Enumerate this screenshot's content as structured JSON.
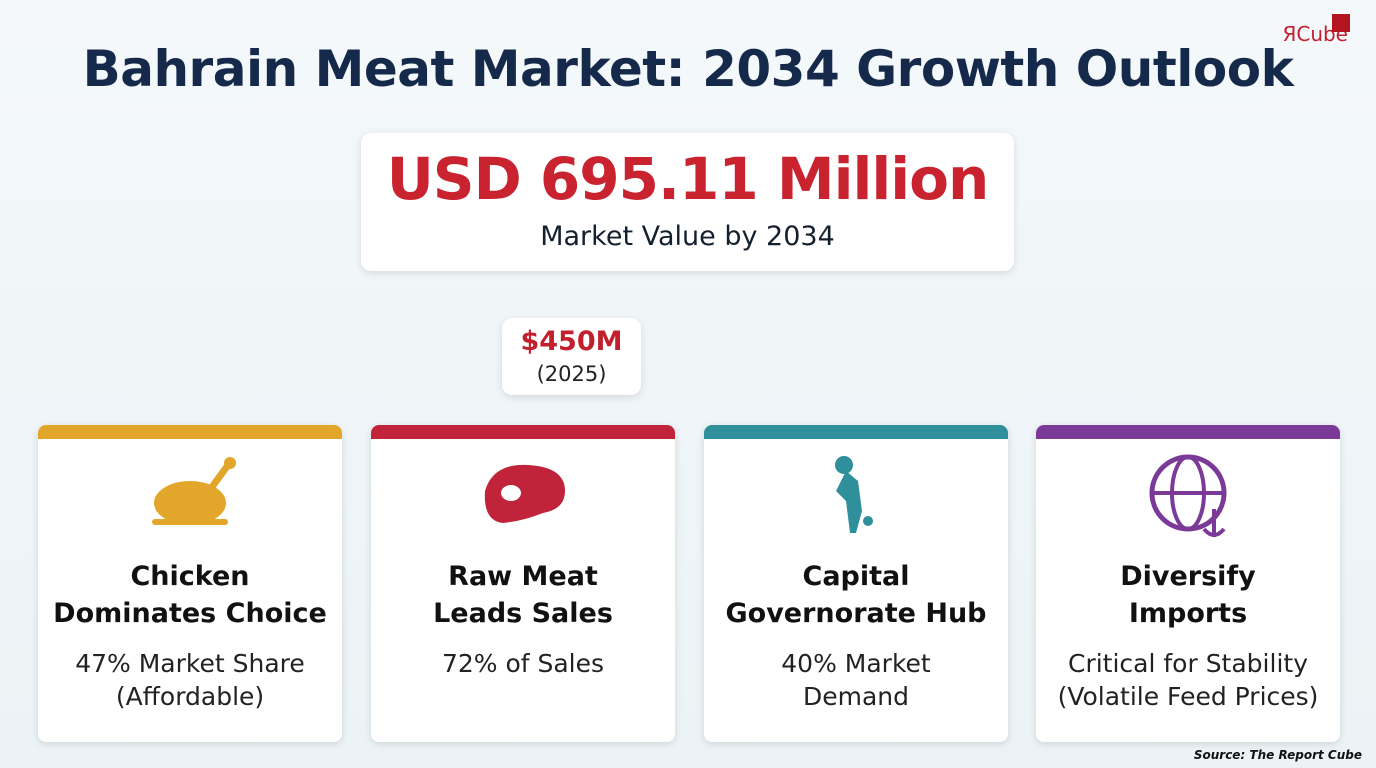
{
  "header": {
    "title": "Bahrain Meat Market: 2034 Growth Outlook",
    "logo": "ЯCube"
  },
  "headline": {
    "value": "USD 695.11 Million",
    "caption": "Market Value by 2034"
  },
  "badge": {
    "value": "$450M",
    "caption": "(2025)"
  },
  "cards": [
    {
      "color": "#e2a62a",
      "title": [
        "Chicken",
        "Dominates Choice"
      ],
      "text": [
        "47% Market Share",
        "(Affordable)"
      ]
    },
    {
      "color": "#c0233a",
      "title": [
        "Raw Meat",
        "Leads Sales"
      ],
      "text": [
        "72% of Sales"
      ]
    },
    {
      "color": "#2f8f9b",
      "title": [
        "Capital",
        "Governorate Hub"
      ],
      "text": [
        "40% Market",
        "Demand"
      ]
    },
    {
      "color": "#7b3a98",
      "title": [
        "Diversify",
        "Imports"
      ],
      "text": [
        "Critical for Stability",
        "(Volatile Feed Prices)"
      ]
    }
  ],
  "footer": {
    "source": "Source: The Report Cube"
  }
}
